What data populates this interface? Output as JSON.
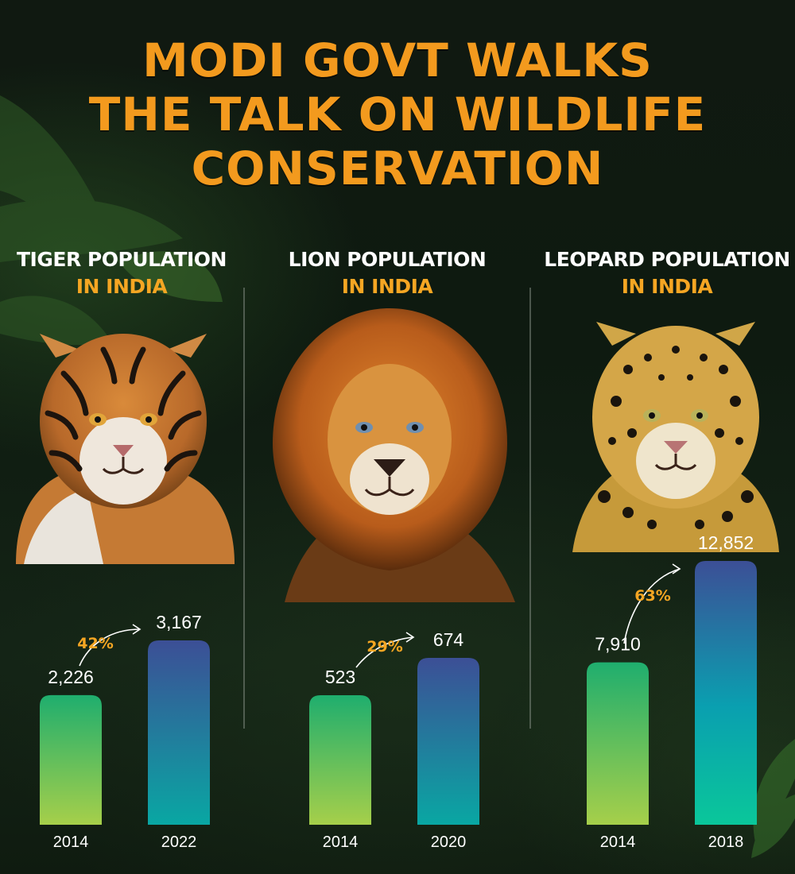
{
  "title": {
    "line1": "MODI GOVT WALKS",
    "line2": "THE TALK ON WILDLIFE",
    "line3": "CONSERVATION"
  },
  "sections": [
    {
      "name_line1": "TIGER POPULATION",
      "name_line2": "IN INDIA",
      "animal_icon": "tiger-portrait"
    },
    {
      "name_line1": "LION POPULATION",
      "name_line2": "IN INDIA",
      "animal_icon": "lion-portrait"
    },
    {
      "name_line1": "LEOPARD POPULATION",
      "name_line2": "IN INDIA",
      "animal_icon": "leopard-portrait"
    }
  ],
  "colors": {
    "title": "#f39a1e",
    "subtitle": "#f5a623",
    "bar_old_top": "#1fae6e",
    "bar_old_bottom": "#a6cf4a",
    "bar_new_top": "#3c4f96",
    "bar_new_bottom": "#09a7a3",
    "bar_new_bottom_leopard": "#0ac79a"
  },
  "chart_data": [
    {
      "type": "bar",
      "categories": [
        "2014",
        "2022"
      ],
      "values": [
        2226,
        3167
      ],
      "value_labels": [
        "2,226",
        "3,167"
      ],
      "growth": "42%"
    },
    {
      "type": "bar",
      "categories": [
        "2014",
        "2020"
      ],
      "values": [
        523,
        674
      ],
      "value_labels": [
        "523",
        "674"
      ],
      "growth": "29%"
    },
    {
      "type": "bar",
      "categories": [
        "2014",
        "2018"
      ],
      "values": [
        7910,
        12852
      ],
      "value_labels": [
        "7,910",
        "12,852"
      ],
      "growth": "63%"
    }
  ]
}
